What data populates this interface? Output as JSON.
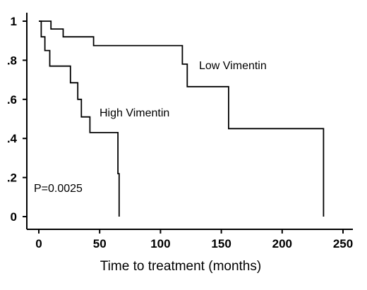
{
  "chart_data": {
    "type": "line",
    "title": "",
    "xlabel": "Time to treatment (months)",
    "ylabel": "",
    "xlim": [
      0,
      250
    ],
    "ylim": [
      0,
      1
    ],
    "x_ticks": [
      0,
      50,
      100,
      150,
      200,
      250
    ],
    "x_tick_labels": [
      "0",
      "50",
      "100",
      "150",
      "200",
      "250"
    ],
    "y_ticks": [
      0,
      0.2,
      0.4,
      0.6,
      0.8,
      1
    ],
    "y_tick_labels": [
      "0",
      ".2",
      ".4",
      ".6",
      ".8",
      "1"
    ],
    "step": true,
    "grid": false,
    "series": [
      {
        "name": "Low Vimentin",
        "color": "#000000",
        "x": [
          0,
          10,
          10,
          20,
          20,
          45,
          45,
          118,
          118,
          122,
          122,
          156,
          156,
          234,
          234
        ],
        "y": [
          1.0,
          1.0,
          0.96,
          0.96,
          0.92,
          0.92,
          0.875,
          0.875,
          0.78,
          0.78,
          0.665,
          0.665,
          0.45,
          0.45,
          0.0
        ]
      },
      {
        "name": "High Vimentin",
        "color": "#000000",
        "x": [
          0,
          2,
          2,
          5,
          5,
          9,
          9,
          26,
          26,
          32,
          32,
          35,
          35,
          42,
          42,
          65,
          65,
          66,
          66
        ],
        "y": [
          1.0,
          1.0,
          0.92,
          0.92,
          0.85,
          0.85,
          0.77,
          0.77,
          0.685,
          0.685,
          0.6,
          0.6,
          0.51,
          0.51,
          0.43,
          0.43,
          0.22,
          0.22,
          0.0
        ]
      }
    ],
    "annotations": [
      {
        "text": "P=0.0025"
      }
    ]
  }
}
